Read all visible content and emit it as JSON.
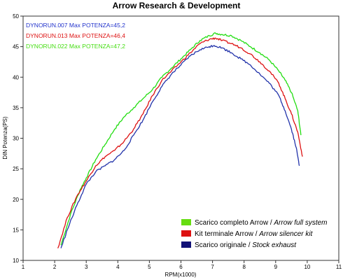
{
  "chart_data": {
    "type": "line",
    "title": "Arrow Research & Development",
    "xlabel": "RPM(x1000)",
    "ylabel": "DIN Potenza(PS)",
    "xlim": [
      1,
      11
    ],
    "ylim": [
      10,
      50
    ],
    "x_ticks": [
      "1",
      "2",
      "3",
      "4",
      "5",
      "6",
      "7",
      "8",
      "9",
      "10",
      "11"
    ],
    "y_ticks": [
      "10",
      "15",
      "20",
      "25",
      "30",
      "35",
      "40",
      "45",
      "50"
    ],
    "grid": false,
    "legend_position": "bottom-right",
    "run_labels": [
      {
        "text": "DYNORUN.007  Max POTENZA=45,2",
        "color": "#2233cc"
      },
      {
        "text": "DYNORUN.013  Max POTENZA=46,4",
        "color": "#dd1111"
      },
      {
        "text": "DYNORUN.022  Max POTENZA=47,2",
        "color": "#44dd11"
      }
    ],
    "legend": [
      {
        "plain": "Scarico completo Arrow / ",
        "italic": "Arrow full system",
        "color": "#66dd11"
      },
      {
        "plain": "Kit terminale Arrow / ",
        "italic": "Arrow silencer kit",
        "color": "#dd1111"
      },
      {
        "plain": "Scarico originale / ",
        "italic": "Stock exhaust",
        "color": "#111177"
      }
    ],
    "series": [
      {
        "color": "#22dd11",
        "x": [
          2.2,
          2.5,
          2.8,
          3.0,
          3.3,
          3.6,
          3.9,
          4.2,
          4.5,
          4.8,
          5.1,
          5.4,
          5.7,
          6.0,
          6.3,
          6.6,
          6.9,
          7.1,
          7.3,
          7.6,
          7.9,
          8.2,
          8.5,
          8.8,
          9.1,
          9.3,
          9.5,
          9.7,
          9.8
        ],
        "y": [
          12.5,
          17.5,
          21.5,
          23.5,
          26.5,
          29.0,
          31.5,
          33.5,
          35.0,
          36.5,
          38.0,
          40.0,
          41.5,
          43.0,
          44.5,
          46.0,
          46.8,
          47.2,
          47.0,
          46.8,
          46.0,
          45.0,
          44.0,
          42.8,
          41.0,
          39.5,
          37.5,
          34.5,
          30.5
        ]
      },
      {
        "color": "#dd1111",
        "x": [
          2.1,
          2.4,
          2.7,
          3.0,
          3.3,
          3.6,
          3.9,
          4.2,
          4.5,
          4.8,
          5.1,
          5.4,
          5.7,
          6.0,
          6.3,
          6.6,
          6.9,
          7.1,
          7.3,
          7.6,
          7.9,
          8.2,
          8.5,
          8.8,
          9.1,
          9.3,
          9.5,
          9.7,
          9.85
        ],
        "y": [
          12.0,
          17.0,
          20.5,
          23.0,
          25.5,
          27.0,
          28.0,
          29.5,
          31.5,
          34.0,
          37.0,
          39.5,
          41.0,
          42.5,
          44.0,
          45.5,
          46.2,
          46.4,
          46.0,
          45.5,
          44.8,
          43.8,
          42.5,
          41.0,
          39.0,
          36.5,
          34.0,
          31.0,
          27.0
        ]
      },
      {
        "color": "#2233aa",
        "x": [
          2.2,
          2.4,
          2.7,
          3.0,
          3.3,
          3.6,
          3.9,
          4.2,
          4.5,
          4.8,
          5.1,
          5.4,
          5.7,
          6.0,
          6.3,
          6.6,
          6.9,
          7.05,
          7.3,
          7.6,
          7.9,
          8.2,
          8.5,
          8.8,
          9.1,
          9.3,
          9.5,
          9.65,
          9.75
        ],
        "y": [
          12.0,
          15.0,
          19.0,
          22.5,
          24.5,
          25.5,
          26.5,
          28.0,
          30.5,
          33.0,
          36.0,
          38.5,
          40.5,
          42.0,
          43.5,
          44.5,
          45.0,
          45.2,
          44.8,
          44.0,
          43.0,
          42.0,
          40.5,
          39.0,
          37.0,
          34.5,
          31.5,
          28.5,
          25.5
        ]
      }
    ]
  }
}
